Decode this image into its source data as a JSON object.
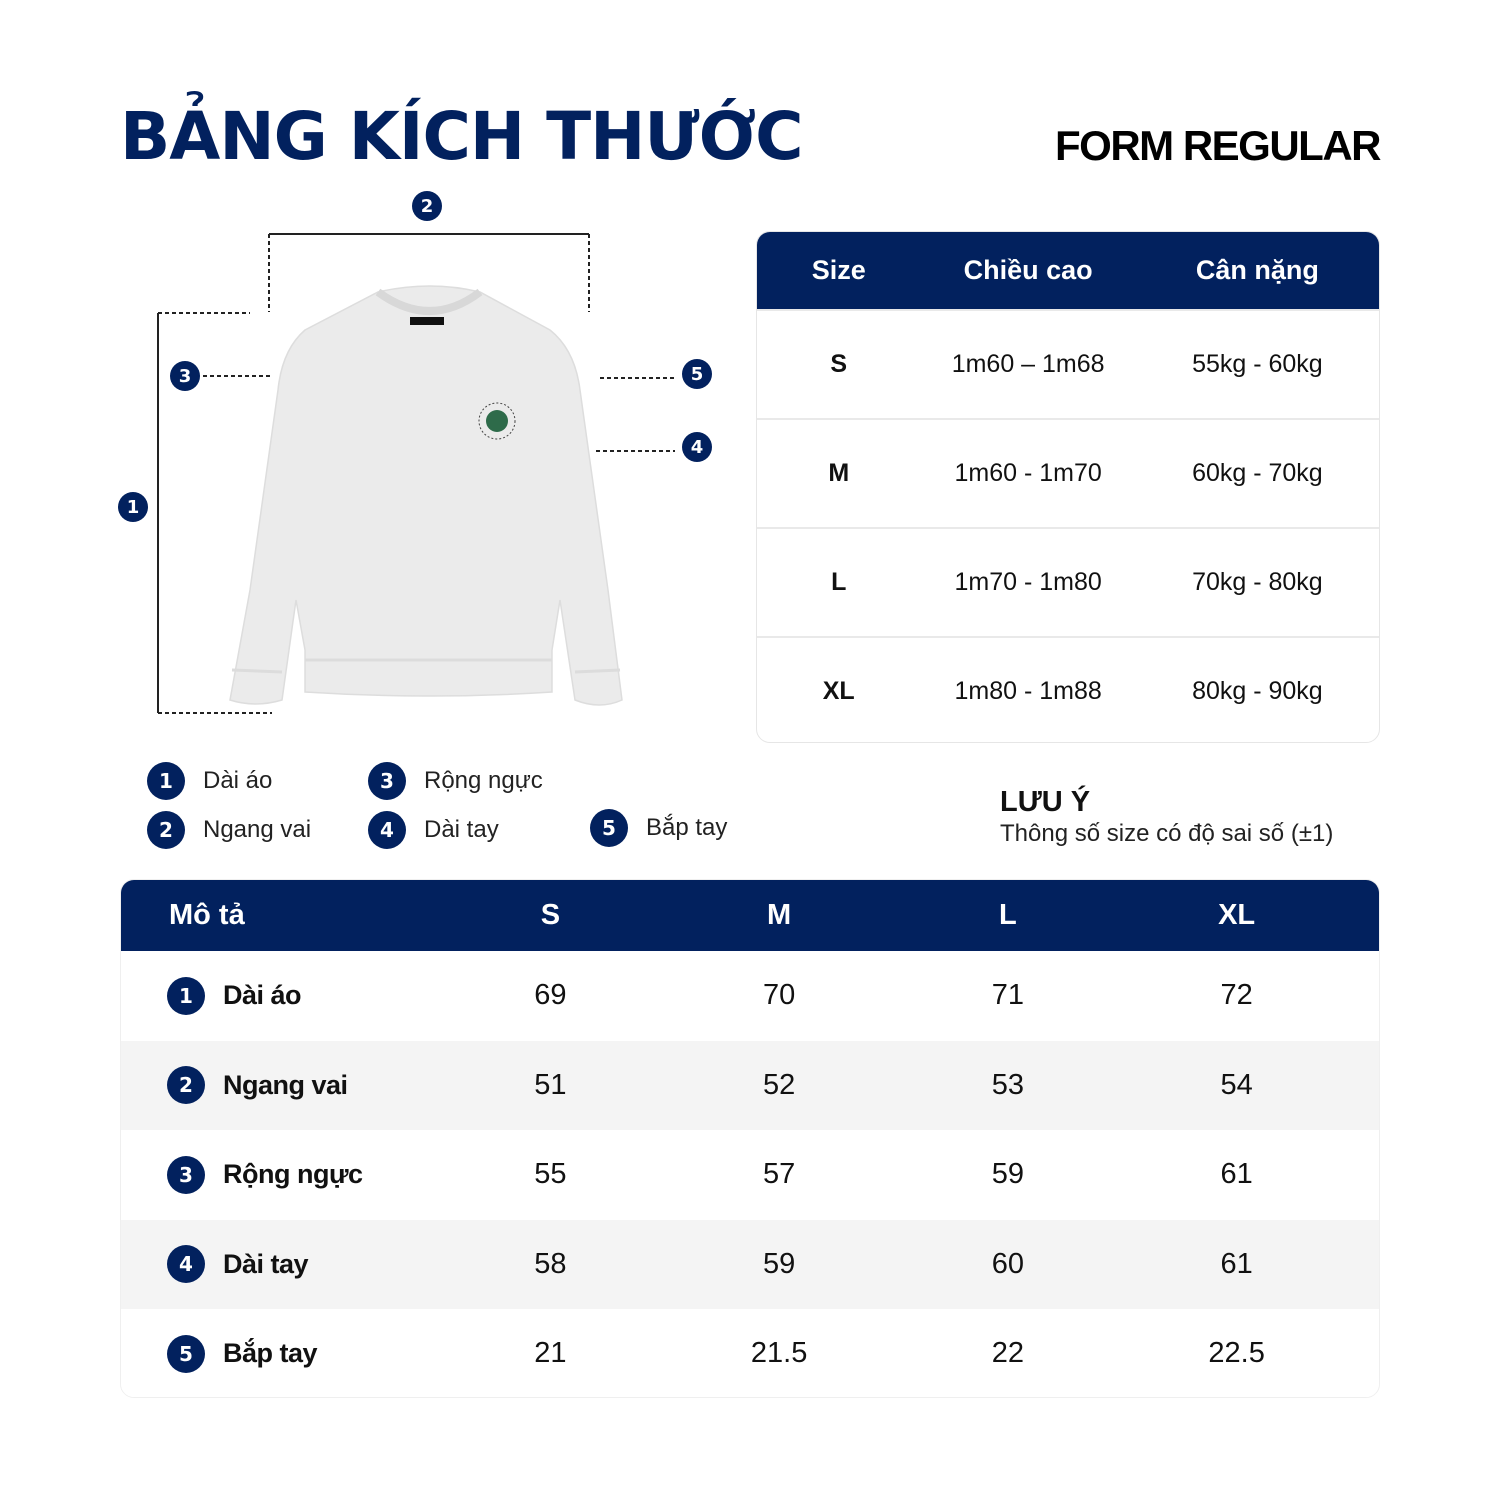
{
  "title": "BẢNG KÍCH THƯỚC",
  "form": "FORM REGULAR",
  "colors": {
    "navy": "#02215E",
    "stripe": "#F4F4F4",
    "logo_green": "#2E6B4A"
  },
  "diagram": {
    "markers": [
      "1",
      "2",
      "3",
      "4",
      "5"
    ]
  },
  "size_table": {
    "headers": [
      "Size",
      "Chiều cao",
      "Cân nặng"
    ],
    "rows": [
      [
        "S",
        "1m60 – 1m68",
        "55kg - 60kg"
      ],
      [
        "M",
        "1m60 - 1m70",
        "60kg - 70kg"
      ],
      [
        "L",
        "1m70 - 1m80",
        "70kg - 80kg"
      ],
      [
        "XL",
        "1m80 - 1m88",
        "80kg - 90kg"
      ]
    ]
  },
  "legend": [
    {
      "num": "1",
      "label": "Dài áo"
    },
    {
      "num": "2",
      "label": "Ngang vai"
    },
    {
      "num": "3",
      "label": "Rộng ngực"
    },
    {
      "num": "4",
      "label": "Dài tay"
    },
    {
      "num": "5",
      "label": "Bắp tay"
    }
  ],
  "note": {
    "title": "LƯU Ý",
    "text": "Thông số size có độ sai số (±1)"
  },
  "measure_table": {
    "headers": [
      "Mô tả",
      "S",
      "M",
      "L",
      "XL"
    ],
    "rows": [
      {
        "num": "1",
        "label": "Dài áo",
        "values": [
          "69",
          "70",
          "71",
          "72"
        ]
      },
      {
        "num": "2",
        "label": "Ngang vai",
        "values": [
          "51",
          "52",
          "53",
          "54"
        ]
      },
      {
        "num": "3",
        "label": "Rộng ngực",
        "values": [
          "55",
          "57",
          "59",
          "61"
        ]
      },
      {
        "num": "4",
        "label": "Dài tay",
        "values": [
          "58",
          "59",
          "60",
          "61"
        ]
      },
      {
        "num": "5",
        "label": "Bắp tay",
        "values": [
          "21",
          "21.5",
          "22",
          "22.5"
        ]
      }
    ]
  }
}
